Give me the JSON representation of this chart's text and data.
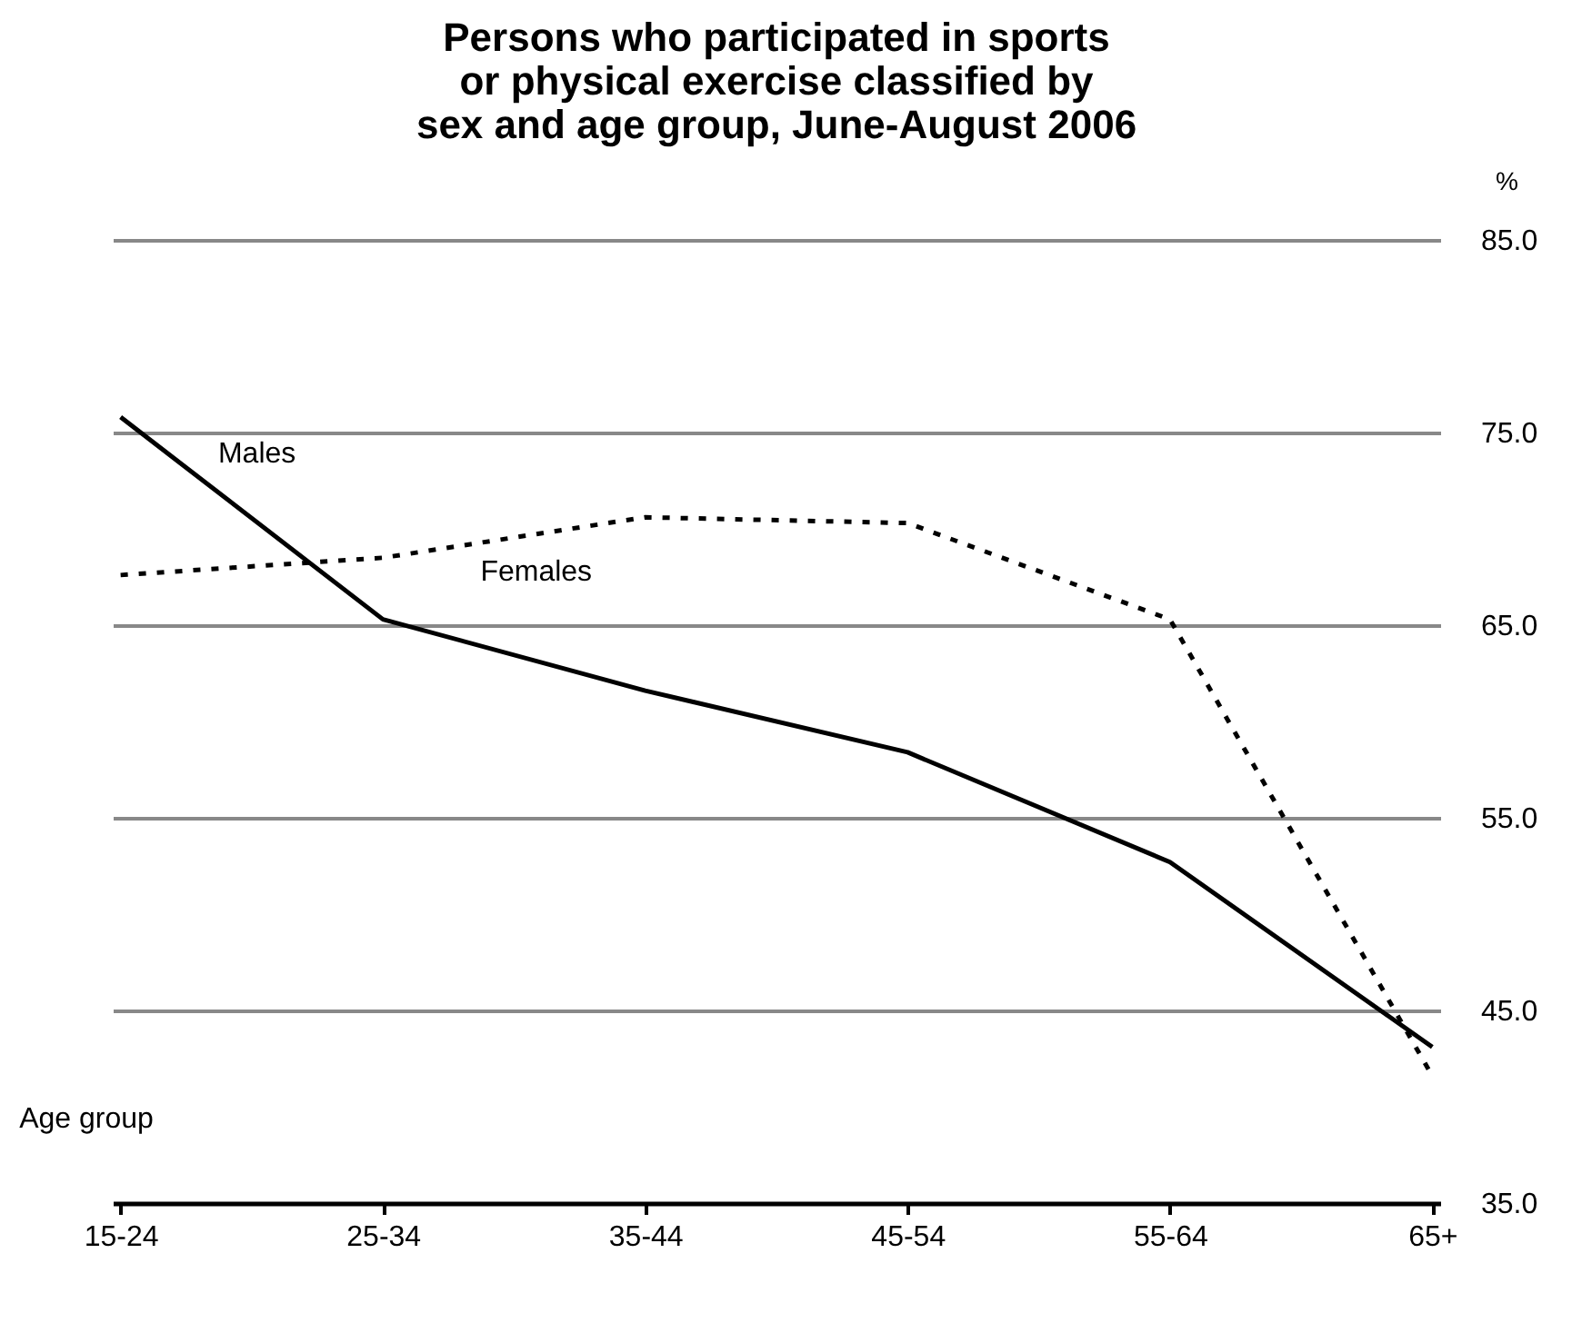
{
  "chart_data": {
    "type": "line",
    "title": "Persons who participated in sports or physical exercise classified by sex and age group, June-August 2006",
    "xlabel": "Age group",
    "ylabel": "%",
    "categories": [
      "15-24",
      "25-34",
      "35-44",
      "45-54",
      "55-64",
      "65+"
    ],
    "series": [
      {
        "name": "Males",
        "color": "#000000",
        "line_style": "solid",
        "values": [
          75.8,
          65.3,
          61.6,
          58.4,
          52.7,
          43.1
        ]
      },
      {
        "name": "Females",
        "color": "#000000",
        "line_style": "dotted",
        "values": [
          67.6,
          68.5,
          70.6,
          70.3,
          65.3,
          41.6
        ]
      }
    ],
    "ylim": [
      35,
      85
    ],
    "yticks": [
      {
        "value": 35,
        "label": "35.0"
      },
      {
        "value": 45,
        "label": "45.0"
      },
      {
        "value": 55,
        "label": "55.0"
      },
      {
        "value": 65,
        "label": "65.0"
      },
      {
        "value": 75,
        "label": "75.0"
      },
      {
        "value": 85,
        "label": "85.0"
      }
    ],
    "grid": "y",
    "marker": "none"
  }
}
